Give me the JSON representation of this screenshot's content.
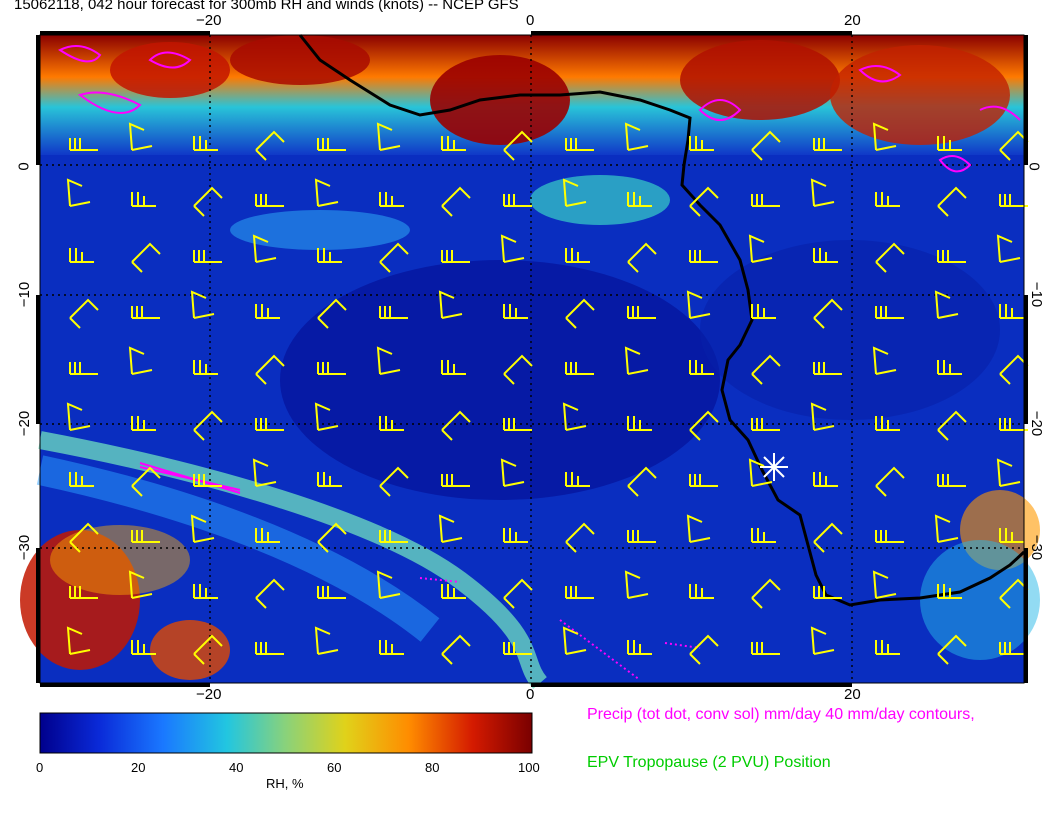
{
  "title": "15062118, 042 hour forecast for 300mb RH and winds (knots) -- NCEP GFS",
  "lon_ticks_top": [
    "−20",
    "0",
    "20"
  ],
  "lon_ticks_bottom": [
    "−20",
    "0",
    "20"
  ],
  "lat_ticks_left": [
    "0",
    "−10",
    "−20",
    "−30"
  ],
  "lat_ticks_right": [
    "0",
    "−10",
    "−20",
    "−30"
  ],
  "colorbar": {
    "ticks": [
      "0",
      "20",
      "40",
      "60",
      "80",
      "100"
    ],
    "label": "RH, %",
    "colors": [
      "#00008c",
      "#0a2ad8",
      "#1a78ff",
      "#22c6e0",
      "#8ad27a",
      "#e0d21a",
      "#ff8c00",
      "#d41a00",
      "#7a0000"
    ]
  },
  "legend": {
    "precip": "Precip (tot dot, conv sol) mm/day 40 mm/day contours,",
    "precip_color": "#ff00ff",
    "epv": "EPV Tropopause (2 PVU) Position",
    "epv_color": "#00cc00"
  },
  "map": {
    "lon_range": [
      -30,
      30
    ],
    "lat_range": [
      -40,
      10
    ],
    "wind_barb_color": "#ffff00",
    "coast_color": "#000000",
    "marker": "white-star"
  }
}
